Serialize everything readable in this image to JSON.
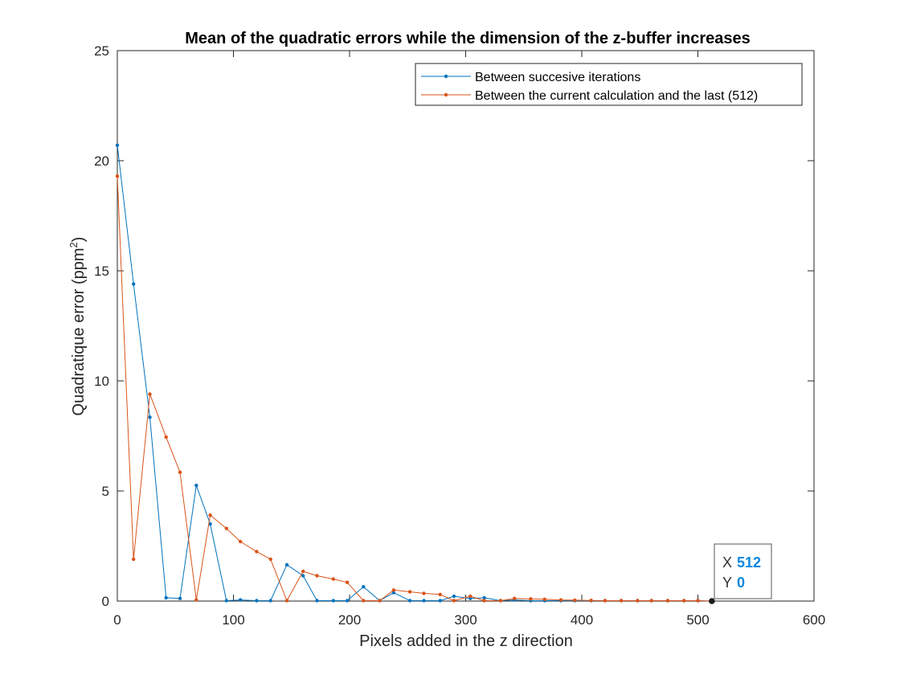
{
  "chart_data": {
    "type": "line",
    "title": "Mean of the quadratic errors while the dimension of the z-buffer increases",
    "xlabel": "Pixels added in the z direction",
    "ylabel": "Quadratique error (ppm",
    "ylabel_sup": "2",
    "ylabel_close": ")",
    "xlim": [
      0,
      600
    ],
    "ylim": [
      0,
      25
    ],
    "xticks": [
      "0",
      "100",
      "200",
      "300",
      "400",
      "500",
      "600"
    ],
    "yticks": [
      "0",
      "5",
      "10",
      "15",
      "20",
      "25"
    ],
    "xtick_values": [
      0,
      100,
      200,
      300,
      400,
      500,
      600
    ],
    "ytick_values": [
      0,
      5,
      10,
      15,
      20,
      25
    ],
    "grid": false,
    "legend_position": "top-right",
    "series": [
      {
        "name": "Between succesive iterations",
        "color": "#0072BD",
        "x": [
          0,
          14,
          28,
          42,
          54,
          68,
          80,
          94,
          106,
          120,
          132,
          146,
          160,
          172,
          186,
          198,
          212,
          226,
          238,
          252,
          264,
          278,
          290,
          304,
          316,
          330,
          342,
          356,
          368,
          382,
          394,
          408,
          420,
          434,
          448,
          460,
          474,
          488,
          500,
          512
        ],
        "y": [
          20.7,
          14.4,
          8.35,
          0.15,
          0.12,
          5.25,
          3.5,
          0.02,
          0.05,
          0.02,
          0.02,
          1.65,
          1.15,
          0.02,
          0.02,
          0.02,
          0.65,
          0.02,
          0.38,
          0.02,
          0.02,
          0.02,
          0.22,
          0.12,
          0.15,
          0.02,
          0.05,
          0.02,
          0.02,
          0.02,
          0.02,
          0.02,
          0.02,
          0.02,
          0.02,
          0.02,
          0.02,
          0.02,
          0.02,
          0.0
        ]
      },
      {
        "name": "Between the current calculation and the last (512)",
        "color": "#D95319",
        "x": [
          0,
          14,
          28,
          42,
          54,
          68,
          80,
          94,
          106,
          120,
          132,
          146,
          160,
          172,
          186,
          198,
          212,
          226,
          238,
          252,
          264,
          278,
          290,
          304,
          316,
          330,
          342,
          356,
          368,
          382,
          394,
          408,
          420,
          434,
          448,
          460,
          474,
          488,
          500,
          512
        ],
        "y": [
          19.3,
          1.9,
          9.4,
          7.45,
          5.85,
          0.05,
          3.9,
          3.3,
          2.7,
          2.25,
          1.9,
          0.02,
          1.35,
          1.15,
          1.0,
          0.85,
          0.02,
          0.02,
          0.5,
          0.42,
          0.35,
          0.3,
          0.02,
          0.22,
          0.02,
          0.02,
          0.12,
          0.1,
          0.08,
          0.05,
          0.04,
          0.03,
          0.02,
          0.02,
          0.02,
          0.02,
          0.02,
          0.02,
          0.02,
          0.0
        ]
      }
    ],
    "datatip": {
      "x_key": "X",
      "x_value": "512",
      "y_key": "Y",
      "y_value": "0",
      "point_x": 512,
      "point_y": 0
    }
  }
}
